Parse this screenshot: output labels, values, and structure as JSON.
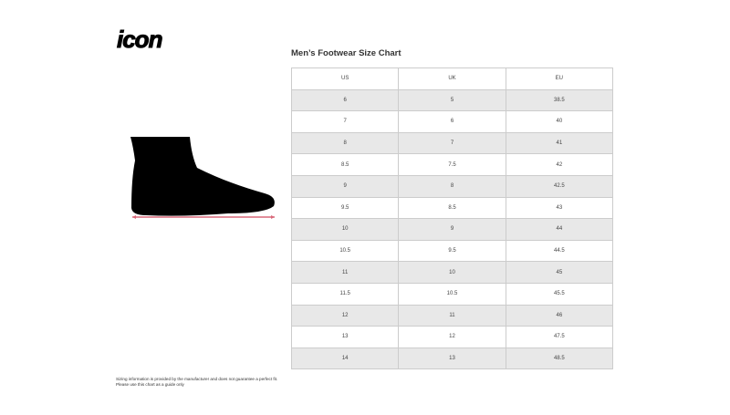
{
  "brand": {
    "logo_text": "icon"
  },
  "title": "Men’s Footwear Size Chart",
  "table": {
    "headers": [
      "US",
      "UK",
      "EU"
    ],
    "rows": [
      [
        "6",
        "5",
        "38.5"
      ],
      [
        "7",
        "6",
        "40"
      ],
      [
        "8",
        "7",
        "41"
      ],
      [
        "8.5",
        "7.5",
        "42"
      ],
      [
        "9",
        "8",
        "42.5"
      ],
      [
        "9.5",
        "8.5",
        "43"
      ],
      [
        "10",
        "9",
        "44"
      ],
      [
        "10.5",
        "9.5",
        "44.5"
      ],
      [
        "11",
        "10",
        "45"
      ],
      [
        "11.5",
        "10.5",
        "45.5"
      ],
      [
        "12",
        "11",
        "46"
      ],
      [
        "13",
        "12",
        "47.5"
      ],
      [
        "14",
        "13",
        "48.5"
      ]
    ]
  },
  "note": {
    "line1": "Sizing information is provided by the manufacturer and does not guarantee a perfect fit.",
    "line2": "Please use this chart as a guide only"
  },
  "colors": {
    "measure_line": "#d9687a",
    "row_shade": "#e8e8e8"
  }
}
